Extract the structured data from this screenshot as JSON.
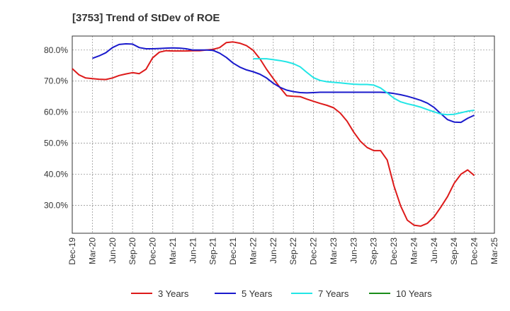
{
  "chart_data": {
    "type": "line",
    "title": "[3753]  Trend of StDev of ROE",
    "xlabel": "",
    "ylabel": "",
    "x_tick_labels": [
      "Dec-19",
      "Mar-20",
      "Jun-20",
      "Sep-20",
      "Dec-20",
      "Mar-21",
      "Jun-21",
      "Sep-21",
      "Dec-21",
      "Mar-22",
      "Jun-22",
      "Sep-22",
      "Dec-22",
      "Mar-23",
      "Jun-23",
      "Sep-23",
      "Dec-23",
      "Mar-24",
      "Jun-24",
      "Sep-24",
      "Dec-24",
      "Mar-25"
    ],
    "y_tick_labels": [
      "30.0%",
      "40.0%",
      "50.0%",
      "60.0%",
      "70.0%",
      "80.0%"
    ],
    "y_ticks": [
      30,
      40,
      50,
      60,
      70,
      80
    ],
    "ylim": [
      21,
      84.5
    ],
    "grid": true,
    "legend_position": "bottom",
    "colors": {
      "3 Years": "#dd1a1a",
      "5 Years": "#1a1acc",
      "7 Years": "#22e6e6",
      "10 Years": "#1a8c1a"
    },
    "series": [
      {
        "name": "3 Years",
        "x": [
          "Dec-19",
          "Jan-20",
          "Feb-20",
          "Mar-20",
          "Apr-20",
          "May-20",
          "Jun-20",
          "Jul-20",
          "Aug-20",
          "Sep-20",
          "Oct-20",
          "Nov-20",
          "Dec-20",
          "Jan-21",
          "Feb-21",
          "Mar-21",
          "Apr-21",
          "May-21",
          "Jun-21",
          "Jul-21",
          "Aug-21",
          "Sep-21",
          "Oct-21",
          "Nov-21",
          "Dec-21",
          "Jan-22",
          "Feb-22",
          "Mar-22",
          "Apr-22",
          "May-22",
          "Jun-22",
          "Jul-22",
          "Aug-22",
          "Sep-22",
          "Oct-22",
          "Nov-22",
          "Dec-22",
          "Jan-23",
          "Feb-23",
          "Mar-23",
          "Apr-23",
          "May-23",
          "Jun-23",
          "Jul-23",
          "Aug-23",
          "Sep-23",
          "Oct-23",
          "Nov-23",
          "Dec-23",
          "Jan-24",
          "Feb-24",
          "Mar-24",
          "Apr-24",
          "May-24",
          "Jun-24",
          "Jul-24",
          "Aug-24",
          "Sep-24",
          "Oct-24",
          "Nov-24",
          "Dec-24"
        ],
        "values": [
          74.0,
          72.0,
          71.0,
          70.8,
          70.6,
          70.5,
          71.0,
          71.8,
          72.3,
          72.7,
          72.4,
          73.8,
          77.5,
          79.3,
          79.8,
          79.7,
          79.7,
          79.7,
          79.8,
          79.8,
          80.0,
          80.2,
          80.8,
          82.4,
          82.6,
          82.2,
          81.4,
          79.9,
          77.2,
          73.8,
          70.8,
          67.9,
          65.3,
          65.1,
          65.0,
          64.2,
          63.5,
          62.8,
          62.2,
          61.4,
          59.7,
          57.1,
          53.6,
          50.6,
          48.6,
          47.6,
          47.6,
          44.6,
          36.3,
          29.8,
          25.2,
          23.6,
          23.3,
          24.2,
          26.3,
          29.4,
          32.8,
          37.1,
          40.0,
          41.4,
          39.6
        ]
      },
      {
        "name": "5 Years",
        "x": [
          "Mar-20",
          "Apr-20",
          "May-20",
          "Jun-20",
          "Jul-20",
          "Aug-20",
          "Sep-20",
          "Oct-20",
          "Nov-20",
          "Dec-20",
          "Jan-21",
          "Feb-21",
          "Mar-21",
          "Apr-21",
          "May-21",
          "Jun-21",
          "Jul-21",
          "Aug-21",
          "Sep-21",
          "Oct-21",
          "Nov-21",
          "Dec-21",
          "Jan-22",
          "Feb-22",
          "Mar-22",
          "Apr-22",
          "May-22",
          "Jun-22",
          "Jul-22",
          "Aug-22",
          "Sep-22",
          "Oct-22",
          "Nov-22",
          "Dec-22",
          "Jan-23",
          "Feb-23",
          "Mar-23",
          "Apr-23",
          "May-23",
          "Jun-23",
          "Jul-23",
          "Aug-23",
          "Sep-23",
          "Oct-23",
          "Nov-23",
          "Dec-23",
          "Jan-24",
          "Feb-24",
          "Mar-24",
          "Apr-24",
          "May-24",
          "Jun-24",
          "Jul-24",
          "Aug-24",
          "Sep-24",
          "Oct-24",
          "Nov-24",
          "Dec-24"
        ],
        "values": [
          77.3,
          78.1,
          79.1,
          80.8,
          81.8,
          82.0,
          81.9,
          80.8,
          80.4,
          80.4,
          80.5,
          80.6,
          80.7,
          80.6,
          80.4,
          80.0,
          80.0,
          80.0,
          79.9,
          79.0,
          77.6,
          75.8,
          74.5,
          73.6,
          73.0,
          72.2,
          71.0,
          69.3,
          68.0,
          67.1,
          66.6,
          66.3,
          66.2,
          66.3,
          66.4,
          66.4,
          66.4,
          66.4,
          66.4,
          66.4,
          66.4,
          66.4,
          66.4,
          66.4,
          66.3,
          66.0,
          65.6,
          65.1,
          64.5,
          63.8,
          62.9,
          61.5,
          59.5,
          57.6,
          56.8,
          56.7,
          58.0,
          59.0
        ]
      },
      {
        "name": "7 Years",
        "x": [
          "Mar-22",
          "Apr-22",
          "May-22",
          "Jun-22",
          "Jul-22",
          "Aug-22",
          "Sep-22",
          "Oct-22",
          "Nov-22",
          "Dec-22",
          "Jan-23",
          "Feb-23",
          "Mar-23",
          "Apr-23",
          "May-23",
          "Jun-23",
          "Jul-23",
          "Aug-23",
          "Sep-23",
          "Oct-23",
          "Nov-23",
          "Dec-23",
          "Jan-24",
          "Feb-24",
          "Mar-24",
          "Apr-24",
          "May-24",
          "Jun-24",
          "Jul-24",
          "Aug-24",
          "Sep-24",
          "Oct-24",
          "Nov-24",
          "Dec-24"
        ],
        "values": [
          77.2,
          77.2,
          77.2,
          76.9,
          76.6,
          76.2,
          75.6,
          74.6,
          72.8,
          71.1,
          70.2,
          69.8,
          69.6,
          69.4,
          69.2,
          69.0,
          68.9,
          68.9,
          68.7,
          67.8,
          66.2,
          64.5,
          63.3,
          62.7,
          62.2,
          61.6,
          60.8,
          60.1,
          59.4,
          59.2,
          59.3,
          59.8,
          60.3,
          60.6
        ]
      },
      {
        "name": "10 Years",
        "x": [],
        "values": []
      }
    ]
  }
}
